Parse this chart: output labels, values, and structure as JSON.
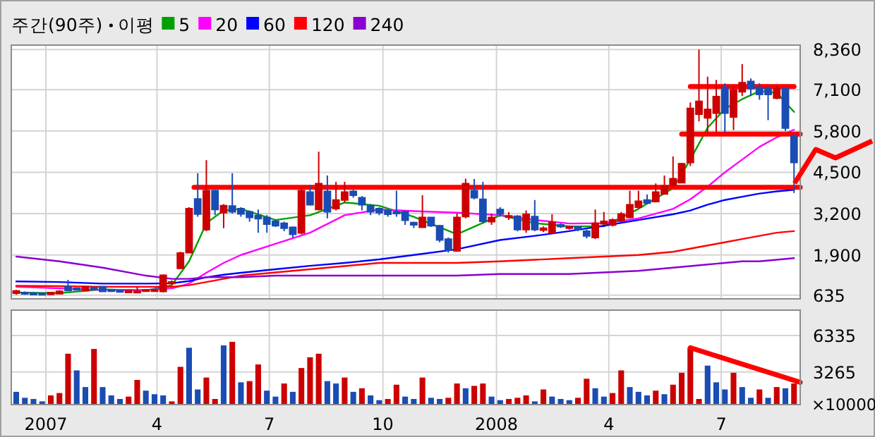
{
  "chart_data": [
    {
      "type": "candlestick",
      "title": "주간(90주)",
      "legend_title": "이평",
      "legend": "top",
      "grid": true,
      "tick_labels": "y",
      "xlim": [
        "2006-12-04",
        "2008-09-03"
      ],
      "xticks": [
        {
          "value": "2007-01-01",
          "label": null
        },
        {
          "value": "2007-04-01",
          "label": null
        },
        {
          "value": "2007-07-01",
          "label": null
        },
        {
          "value": "2007-10-01",
          "label": null
        },
        {
          "value": "2008-01-01",
          "label": null
        },
        {
          "value": "2008-04-01",
          "label": null
        },
        {
          "value": "2008-07-01",
          "label": null
        }
      ],
      "ylim": [
        520,
        8500
      ],
      "yticks": [
        {
          "value": 635,
          "label": "635"
        },
        {
          "value": 1900,
          "label": "1,900"
        },
        {
          "value": 3200,
          "label": "3,200"
        },
        {
          "value": 4500,
          "label": "4,500"
        },
        {
          "value": 5800,
          "label": "5,800"
        },
        {
          "value": 7100,
          "label": "7,100"
        },
        {
          "value": 8360,
          "label": "8,360"
        }
      ],
      "x": [
        "2006-12-08",
        "2006-12-15",
        "2006-12-22",
        "2006-12-29",
        "2007-01-05",
        "2007-01-12",
        "2007-01-19",
        "2007-01-26",
        "2007-02-02",
        "2007-02-09",
        "2007-02-16",
        "2007-02-23",
        "2007-03-02",
        "2007-03-09",
        "2007-03-16",
        "2007-03-23",
        "2007-03-30",
        "2007-04-06",
        "2007-04-13",
        "2007-04-20",
        "2007-04-27",
        "2007-05-04",
        "2007-05-11",
        "2007-05-18",
        "2007-05-25",
        "2007-06-01",
        "2007-06-08",
        "2007-06-15",
        "2007-06-22",
        "2007-06-29",
        "2007-07-06",
        "2007-07-13",
        "2007-07-20",
        "2007-07-27",
        "2007-08-03",
        "2007-08-10",
        "2007-08-17",
        "2007-08-24",
        "2007-08-31",
        "2007-09-07",
        "2007-09-14",
        "2007-09-21",
        "2007-09-28",
        "2007-10-05",
        "2007-10-12",
        "2007-10-19",
        "2007-10-26",
        "2007-11-02",
        "2007-11-09",
        "2007-11-16",
        "2007-11-23",
        "2007-11-30",
        "2007-12-07",
        "2007-12-14",
        "2007-12-21",
        "2007-12-28",
        "2008-01-04",
        "2008-01-11",
        "2008-01-18",
        "2008-01-25",
        "2008-02-01",
        "2008-02-08",
        "2008-02-15",
        "2008-02-22",
        "2008-02-29",
        "2008-03-07",
        "2008-03-14",
        "2008-03-21",
        "2008-03-28",
        "2008-04-04",
        "2008-04-11",
        "2008-04-18",
        "2008-04-25",
        "2008-05-02",
        "2008-05-09",
        "2008-05-16",
        "2008-05-23",
        "2008-05-30",
        "2008-06-06",
        "2008-06-13",
        "2008-06-20",
        "2008-06-27",
        "2008-07-04",
        "2008-07-11",
        "2008-07-18",
        "2008-07-25",
        "2008-08-01",
        "2008-08-08",
        "2008-08-15",
        "2008-08-22",
        "2008-08-29"
      ],
      "ohlc": [
        [
          700,
          800,
          650,
          770
        ],
        [
          720,
          750,
          650,
          680
        ],
        [
          700,
          730,
          635,
          660
        ],
        [
          690,
          720,
          650,
          660
        ],
        [
          660,
          740,
          650,
          720
        ],
        [
          680,
          790,
          670,
          760
        ],
        [
          900,
          1120,
          760,
          780
        ],
        [
          850,
          880,
          780,
          800
        ],
        [
          780,
          930,
          760,
          900
        ],
        [
          880,
          900,
          800,
          820
        ],
        [
          900,
          920,
          730,
          750
        ],
        [
          800,
          820,
          740,
          760
        ],
        [
          780,
          800,
          720,
          740
        ],
        [
          720,
          800,
          700,
          780
        ],
        [
          740,
          900,
          700,
          760
        ],
        [
          760,
          820,
          740,
          800
        ],
        [
          780,
          830,
          760,
          800
        ],
        [
          750,
          1290,
          720,
          1265
        ],
        [
          1000,
          1100,
          950,
          1050
        ],
        [
          1480,
          2000,
          1450,
          1960
        ],
        [
          1970,
          3400,
          1950,
          3360
        ],
        [
          3660,
          4470,
          3100,
          3185
        ],
        [
          2700,
          4880,
          2650,
          3920
        ],
        [
          3920,
          3950,
          3150,
          3330
        ],
        [
          3230,
          3500,
          2740,
          3450
        ],
        [
          3440,
          4470,
          3200,
          3260
        ],
        [
          3360,
          3400,
          3100,
          3190
        ],
        [
          3260,
          3300,
          2950,
          3080
        ],
        [
          3140,
          3330,
          2600,
          3040
        ],
        [
          3080,
          3150,
          2600,
          2870
        ],
        [
          2960,
          3000,
          2780,
          2820
        ],
        [
          2900,
          2950,
          2650,
          2740
        ],
        [
          2770,
          2800,
          2450,
          2550
        ],
        [
          2590,
          4000,
          2550,
          3920
        ],
        [
          3880,
          4100,
          3450,
          3480
        ],
        [
          3330,
          5150,
          3300,
          4145
        ],
        [
          3900,
          4400,
          3050,
          3260
        ],
        [
          3360,
          4200,
          3300,
          3630
        ],
        [
          3630,
          4200,
          3550,
          3880
        ],
        [
          3900,
          3950,
          3700,
          3780
        ],
        [
          3700,
          3750,
          3300,
          3480
        ],
        [
          3450,
          3500,
          3150,
          3260
        ],
        [
          3360,
          3400,
          3150,
          3230
        ],
        [
          3300,
          3320,
          3100,
          3180
        ],
        [
          3250,
          3920,
          3100,
          3200
        ],
        [
          3260,
          3300,
          2850,
          2990
        ],
        [
          2920,
          2950,
          2750,
          2850
        ],
        [
          2770,
          3780,
          2750,
          3080
        ],
        [
          3080,
          3100,
          2780,
          2820
        ],
        [
          2820,
          2850,
          2300,
          2370
        ],
        [
          2400,
          2450,
          1980,
          2050
        ],
        [
          2030,
          3200,
          2000,
          3080
        ],
        [
          3110,
          4300,
          3050,
          4145
        ],
        [
          3920,
          4290,
          3650,
          3700
        ],
        [
          3650,
          4200,
          2900,
          2960
        ],
        [
          2950,
          3200,
          2850,
          3080
        ],
        [
          3330,
          3400,
          3100,
          3190
        ],
        [
          3100,
          3250,
          3000,
          3130
        ],
        [
          3120,
          3150,
          2640,
          2700
        ],
        [
          2700,
          3300,
          2600,
          3180
        ],
        [
          3110,
          3630,
          2650,
          2700
        ],
        [
          2680,
          2800,
          2620,
          2740
        ],
        [
          2600,
          3180,
          2580,
          2930
        ],
        [
          2850,
          2900,
          2750,
          2790
        ],
        [
          2740,
          2820,
          2700,
          2790
        ],
        [
          2780,
          2800,
          2650,
          2700
        ],
        [
          2650,
          2700,
          2420,
          2500
        ],
        [
          2450,
          3330,
          2400,
          2900
        ],
        [
          2880,
          3250,
          2850,
          2960
        ],
        [
          2840,
          3050,
          2800,
          3000
        ],
        [
          2970,
          3250,
          2930,
          3190
        ],
        [
          3080,
          3920,
          3050,
          3480
        ],
        [
          3400,
          3920,
          3350,
          3590
        ],
        [
          3630,
          3800,
          3500,
          3530
        ],
        [
          3580,
          4150,
          3550,
          3880
        ],
        [
          3820,
          4400,
          3800,
          4070
        ],
        [
          4100,
          5000,
          4050,
          4300
        ],
        [
          4170,
          4800,
          4150,
          4770
        ],
        [
          4810,
          6700,
          4700,
          6510
        ],
        [
          6330,
          8360,
          6100,
          6730
        ],
        [
          6210,
          7510,
          5700,
          6480
        ],
        [
          6360,
          7400,
          5750,
          6880
        ],
        [
          7170,
          7300,
          5750,
          6360
        ],
        [
          6240,
          7250,
          5830,
          7100
        ],
        [
          7030,
          7900,
          6900,
          7320
        ],
        [
          7360,
          7450,
          6900,
          7130
        ],
        [
          7170,
          7300,
          6780,
          6950
        ],
        [
          7130,
          7200,
          6140,
          6950
        ],
        [
          6830,
          7200,
          6800,
          7130
        ],
        [
          7130,
          7200,
          5800,
          5890
        ],
        [
          5620,
          5700,
          3850,
          4810
        ]
      ],
      "colors": [
        "#cc0000",
        "#1a4cb4",
        "#1a4cb4",
        "#1a4cb4",
        "#cc0000",
        "#cc0000",
        "#1a4cb4",
        "#1a4cb4",
        "#cc0000",
        "#1a4cb4",
        "#1a4cb4",
        "#1a4cb4",
        "#1a4cb4",
        "#cc0000",
        "#cc0000",
        "#cc0000",
        "#cc0000",
        "#cc0000",
        "#cc0000",
        "#cc0000",
        "#cc0000",
        "#1a4cb4",
        "#cc0000",
        "#1a4cb4",
        "#cc0000",
        "#1a4cb4",
        "#1a4cb4",
        "#1a4cb4",
        "#1a4cb4",
        "#1a4cb4",
        "#1a4cb4",
        "#1a4cb4",
        "#1a4cb4",
        "#cc0000",
        "#1a4cb4",
        "#cc0000",
        "#1a4cb4",
        "#cc0000",
        "#cc0000",
        "#1a4cb4",
        "#1a4cb4",
        "#1a4cb4",
        "#1a4cb4",
        "#1a4cb4",
        "#1a4cb4",
        "#1a4cb4",
        "#1a4cb4",
        "#cc0000",
        "#1a4cb4",
        "#1a4cb4",
        "#1a4cb4",
        "#cc0000",
        "#cc0000",
        "#1a4cb4",
        "#1a4cb4",
        "#cc0000",
        "#1a4cb4",
        "#cc0000",
        "#1a4cb4",
        "#cc0000",
        "#1a4cb4",
        "#cc0000",
        "#cc0000",
        "#1a4cb4",
        "#cc0000",
        "#1a4cb4",
        "#1a4cb4",
        "#cc0000",
        "#cc0000",
        "#cc0000",
        "#cc0000",
        "#cc0000",
        "#cc0000",
        "#1a4cb4",
        "#cc0000",
        "#cc0000",
        "#cc0000",
        "#cc0000",
        "#cc0000",
        "#cc0000",
        "#cc0000",
        "#cc0000",
        "#1a4cb4",
        "#cc0000",
        "#cc0000",
        "#1a4cb4",
        "#1a4cb4",
        "#1a4cb4",
        "#cc0000",
        "#1a4cb4",
        "#1a4cb4"
      ],
      "series": [
        {
          "type": "line",
          "name": "5",
          "color": "#00a000",
          "x": [
            "2006-12-08",
            "2007-01-12",
            "2007-02-16",
            "2007-03-23",
            "2007-04-13",
            "2007-04-27",
            "2007-05-11",
            "2007-05-25",
            "2007-06-08",
            "2007-07-06",
            "2007-08-03",
            "2007-08-31",
            "2007-09-28",
            "2007-10-26",
            "2007-11-30",
            "2008-01-04",
            "2008-02-01",
            "2008-02-29",
            "2008-03-28",
            "2008-04-25",
            "2008-05-23",
            "2008-06-06",
            "2008-06-20",
            "2008-07-04",
            "2008-07-18",
            "2008-08-01",
            "2008-08-15",
            "2008-08-29"
          ],
          "values": [
            720,
            700,
            820,
            780,
            950,
            1700,
            2900,
            3300,
            3350,
            3000,
            3150,
            3550,
            3450,
            3100,
            2550,
            3150,
            2900,
            2800,
            2800,
            3350,
            4000,
            4900,
            5900,
            6500,
            6800,
            7050,
            7000,
            6400
          ]
        },
        {
          "type": "line",
          "name": "20",
          "color": "#ff00ff",
          "x": [
            "2006-12-08",
            "2007-01-12",
            "2007-02-16",
            "2007-03-23",
            "2007-04-13",
            "2007-04-27",
            "2007-05-11",
            "2007-05-25",
            "2007-06-08",
            "2007-07-06",
            "2007-08-03",
            "2007-08-31",
            "2007-09-28",
            "2007-10-26",
            "2007-11-30",
            "2008-01-04",
            "2008-02-01",
            "2008-02-29",
            "2008-03-28",
            "2008-04-25",
            "2008-05-23",
            "2008-06-06",
            "2008-06-20",
            "2008-07-04",
            "2008-07-18",
            "2008-08-01",
            "2008-08-15",
            "2008-08-29"
          ],
          "values": [
            900,
            850,
            800,
            800,
            850,
            1000,
            1340,
            1650,
            1900,
            2250,
            2600,
            3150,
            3330,
            3280,
            3230,
            3150,
            3000,
            2890,
            2900,
            3050,
            3350,
            3650,
            4050,
            4500,
            4900,
            5300,
            5600,
            5840
          ]
        },
        {
          "type": "line",
          "name": "60",
          "color": "#0000ff",
          "x": [
            "2006-12-08",
            "2007-01-12",
            "2007-02-16",
            "2007-03-23",
            "2007-04-13",
            "2007-04-27",
            "2007-05-11",
            "2007-05-25",
            "2007-06-08",
            "2007-07-06",
            "2007-08-03",
            "2007-08-31",
            "2007-09-28",
            "2007-10-26",
            "2007-11-30",
            "2008-01-04",
            "2008-02-01",
            "2008-02-29",
            "2008-03-28",
            "2008-04-25",
            "2008-05-23",
            "2008-06-06",
            "2008-06-20",
            "2008-07-04",
            "2008-07-18",
            "2008-08-01",
            "2008-08-15",
            "2008-08-29"
          ],
          "values": [
            1070,
            1050,
            1000,
            1000,
            1010,
            1080,
            1200,
            1280,
            1340,
            1450,
            1560,
            1650,
            1760,
            1900,
            2080,
            2370,
            2500,
            2650,
            2820,
            3000,
            3180,
            3300,
            3480,
            3630,
            3730,
            3830,
            3900,
            3950
          ]
        },
        {
          "type": "line",
          "name": "120",
          "color": "#ff0000",
          "x": [
            "2006-12-08",
            "2007-01-12",
            "2007-02-16",
            "2007-03-23",
            "2007-04-13",
            "2007-04-27",
            "2007-05-11",
            "2007-05-25",
            "2007-06-08",
            "2007-07-06",
            "2007-08-03",
            "2007-08-31",
            "2007-09-28",
            "2007-10-26",
            "2007-11-30",
            "2008-01-04",
            "2008-02-01",
            "2008-02-29",
            "2008-03-28",
            "2008-04-25",
            "2008-05-23",
            "2008-06-06",
            "2008-06-20",
            "2008-07-04",
            "2008-07-18",
            "2008-08-01",
            "2008-08-15",
            "2008-08-29"
          ],
          "values": [
            930,
            920,
            900,
            900,
            900,
            950,
            1050,
            1150,
            1250,
            1350,
            1450,
            1550,
            1650,
            1650,
            1650,
            1700,
            1750,
            1800,
            1850,
            1900,
            2000,
            2100,
            2200,
            2300,
            2400,
            2500,
            2600,
            2650
          ]
        },
        {
          "type": "line",
          "name": "240",
          "color": "#8a00d0",
          "x": [
            "2006-12-08",
            "2007-01-12",
            "2007-02-16",
            "2007-03-23",
            "2007-04-13",
            "2007-04-27",
            "2007-05-11",
            "2007-05-25",
            "2007-06-08",
            "2007-07-06",
            "2007-08-03",
            "2007-08-31",
            "2007-09-28",
            "2007-10-26",
            "2007-11-30",
            "2008-01-04",
            "2008-02-01",
            "2008-02-29",
            "2008-03-28",
            "2008-04-25",
            "2008-05-23",
            "2008-06-06",
            "2008-06-20",
            "2008-07-04",
            "2008-07-18",
            "2008-08-01",
            "2008-08-15",
            "2008-08-29"
          ],
          "values": [
            1850,
            1700,
            1500,
            1250,
            1150,
            1150,
            1200,
            1200,
            1200,
            1250,
            1250,
            1250,
            1250,
            1250,
            1250,
            1300,
            1300,
            1300,
            1350,
            1400,
            1500,
            1550,
            1600,
            1650,
            1700,
            1700,
            1750,
            1800
          ]
        },
        {
          "type": "line",
          "color": "#ff0000",
          "x": [
            "2007-05-01",
            "2008-09-03"
          ],
          "values": [
            4030,
            4030
          ]
        },
        {
          "type": "line",
          "color": "#ff0000",
          "x": [
            "2008-05-30",
            "2008-09-03"
          ],
          "values": [
            5700,
            5700
          ]
        },
        {
          "type": "line",
          "color": "#ff0000",
          "x": [
            "2008-06-06",
            "2008-08-29"
          ],
          "values": [
            7200,
            7200
          ]
        }
      ]
    },
    {
      "type": "bar",
      "grid": true,
      "ylabel": "×10000",
      "xlim": [
        "2006-12-04",
        "2008-09-03"
      ],
      "xticks": [
        {
          "value": "2007-01-01",
          "label": "2007"
        },
        {
          "value": "2007-04-01",
          "label": "4"
        },
        {
          "value": "2007-07-01",
          "label": "7"
        },
        {
          "value": "2007-10-01",
          "label": "10"
        },
        {
          "value": "2008-01-01",
          "label": "2008"
        },
        {
          "value": "2008-04-01",
          "label": "4"
        },
        {
          "value": "2008-07-01",
          "label": "7"
        }
      ],
      "ylim": [
        530,
        8460
      ],
      "yticks": [
        3265,
        6335
      ],
      "x": [
        "2006-12-08",
        "2006-12-15",
        "2006-12-22",
        "2006-12-29",
        "2007-01-05",
        "2007-01-12",
        "2007-01-19",
        "2007-01-26",
        "2007-02-02",
        "2007-02-09",
        "2007-02-16",
        "2007-02-23",
        "2007-03-02",
        "2007-03-09",
        "2007-03-16",
        "2007-03-23",
        "2007-03-30",
        "2007-04-06",
        "2007-04-13",
        "2007-04-20",
        "2007-04-27",
        "2007-05-04",
        "2007-05-11",
        "2007-05-18",
        "2007-05-25",
        "2007-06-01",
        "2007-06-08",
        "2007-06-15",
        "2007-06-22",
        "2007-06-29",
        "2007-07-06",
        "2007-07-13",
        "2007-07-20",
        "2007-07-27",
        "2007-08-03",
        "2007-08-10",
        "2007-08-17",
        "2007-08-24",
        "2007-08-31",
        "2007-09-07",
        "2007-09-14",
        "2007-09-21",
        "2007-09-28",
        "2007-10-05",
        "2007-10-12",
        "2007-10-19",
        "2007-10-26",
        "2007-11-02",
        "2007-11-09",
        "2007-11-16",
        "2007-11-23",
        "2007-11-30",
        "2007-12-07",
        "2007-12-14",
        "2007-12-21",
        "2007-12-28",
        "2008-01-04",
        "2008-01-11",
        "2008-01-18",
        "2008-01-25",
        "2008-02-01",
        "2008-02-08",
        "2008-02-15",
        "2008-02-22",
        "2008-02-29",
        "2008-03-07",
        "2008-03-14",
        "2008-03-21",
        "2008-03-28",
        "2008-04-04",
        "2008-04-11",
        "2008-04-18",
        "2008-04-25",
        "2008-05-02",
        "2008-05-09",
        "2008-05-16",
        "2008-05-23",
        "2008-05-30",
        "2008-06-06",
        "2008-06-13",
        "2008-06-20",
        "2008-06-27",
        "2008-07-04",
        "2008-07-11",
        "2008-07-18",
        "2008-07-25",
        "2008-08-01",
        "2008-08-08",
        "2008-08-15",
        "2008-08-22",
        "2008-08-29"
      ],
      "values": [
        1600,
        1100,
        1000,
        800,
        1300,
        1500,
        4800,
        3400,
        2000,
        5200,
        2000,
        1300,
        1000,
        1200,
        2600,
        1700,
        1400,
        1300,
        800,
        3700,
        5300,
        1800,
        2800,
        1000,
        5500,
        5800,
        2400,
        2500,
        3900,
        1700,
        1200,
        2300,
        1600,
        3600,
        4500,
        4800,
        2500,
        2300,
        2800,
        1600,
        1900,
        1300,
        900,
        1000,
        2200,
        1200,
        1000,
        2800,
        1100,
        1000,
        1100,
        2300,
        1900,
        2100,
        2300,
        1200,
        900,
        1000,
        1100,
        1300,
        800,
        1800,
        1200,
        1000,
        900,
        1100,
        2700,
        1900,
        1200,
        1500,
        3400,
        2000,
        1600,
        1300,
        1700,
        1400,
        2200,
        3200,
        5300,
        1000,
        3800,
        2400,
        1800,
        3200,
        2000,
        1100,
        1800,
        1100,
        2000,
        1900,
        2300
      ],
      "colors": [
        "#1a4cb4",
        "#1a4cb4",
        "#1a4cb4",
        "#1a4cb4",
        "#cc0000",
        "#cc0000",
        "#cc0000",
        "#1a4cb4",
        "#1a4cb4",
        "#cc0000",
        "#1a4cb4",
        "#1a4cb4",
        "#1a4cb4",
        "#cc0000",
        "#cc0000",
        "#1a4cb4",
        "#1a4cb4",
        "#1a4cb4",
        "#cc0000",
        "#cc0000",
        "#1a4cb4",
        "#1a4cb4",
        "#cc0000",
        "#cc0000",
        "#1a4cb4",
        "#cc0000",
        "#1a4cb4",
        "#cc0000",
        "#cc0000",
        "#1a4cb4",
        "#1a4cb4",
        "#cc0000",
        "#1a4cb4",
        "#cc0000",
        "#cc0000",
        "#cc0000",
        "#1a4cb4",
        "#1a4cb4",
        "#cc0000",
        "#1a4cb4",
        "#cc0000",
        "#1a4cb4",
        "#1a4cb4",
        "#cc0000",
        "#cc0000",
        "#1a4cb4",
        "#1a4cb4",
        "#cc0000",
        "#1a4cb4",
        "#1a4cb4",
        "#cc0000",
        "#cc0000",
        "#1a4cb4",
        "#cc0000",
        "#cc0000",
        "#1a4cb4",
        "#1a4cb4",
        "#cc0000",
        "#cc0000",
        "#cc0000",
        "#1a4cb4",
        "#cc0000",
        "#1a4cb4",
        "#1a4cb4",
        "#1a4cb4",
        "#cc0000",
        "#cc0000",
        "#1a4cb4",
        "#1a4cb4",
        "#cc0000",
        "#cc0000",
        "#1a4cb4",
        "#1a4cb4",
        "#1a4cb4",
        "#cc0000",
        "#1a4cb4",
        "#cc0000",
        "#cc0000",
        "#cc0000",
        "#cc0000",
        "#1a4cb4",
        "#1a4cb4",
        "#1a4cb4",
        "#cc0000",
        "#1a4cb4",
        "#1a4cb4",
        "#cc0000",
        "#1a4cb4",
        "#cc0000",
        "#1a4cb4",
        "#cc0000"
      ],
      "series": [
        {
          "type": "line",
          "color": "#ff0000",
          "x": [
            "2008-06-06",
            "2008-09-03"
          ],
          "values": [
            5300,
            2400
          ]
        }
      ]
    }
  ]
}
